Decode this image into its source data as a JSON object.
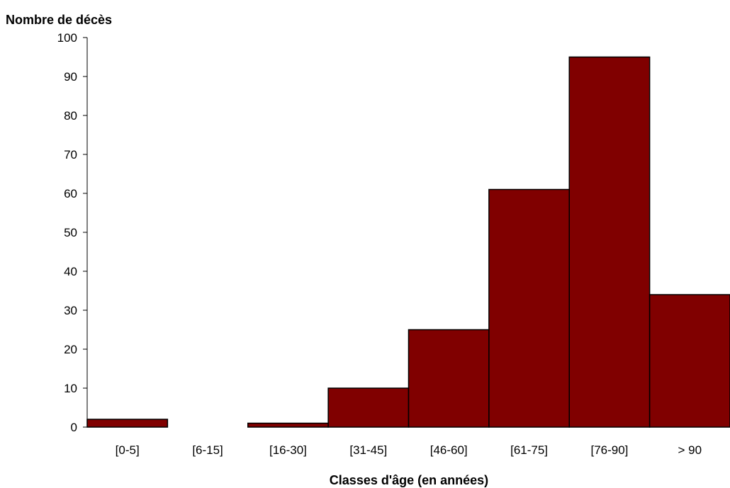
{
  "chart_data": {
    "type": "bar",
    "ylabel": "Nombre de décès",
    "xlabel": "Classes d'âge (en années)",
    "categories": [
      "[0-5]",
      "[6-15]",
      "[16-30]",
      "[31-45]",
      "[46-60]",
      "[61-75]",
      "[76-90]",
      "> 90"
    ],
    "values": [
      2,
      0,
      1,
      10,
      25,
      61,
      95,
      34
    ],
    "ylim": [
      0,
      100
    ],
    "yticks": [
      0,
      10,
      20,
      30,
      40,
      50,
      60,
      70,
      80,
      90,
      100
    ],
    "grid": false,
    "legend": "none",
    "bar_color": "#800000",
    "bar_edge_color": "#000000"
  }
}
